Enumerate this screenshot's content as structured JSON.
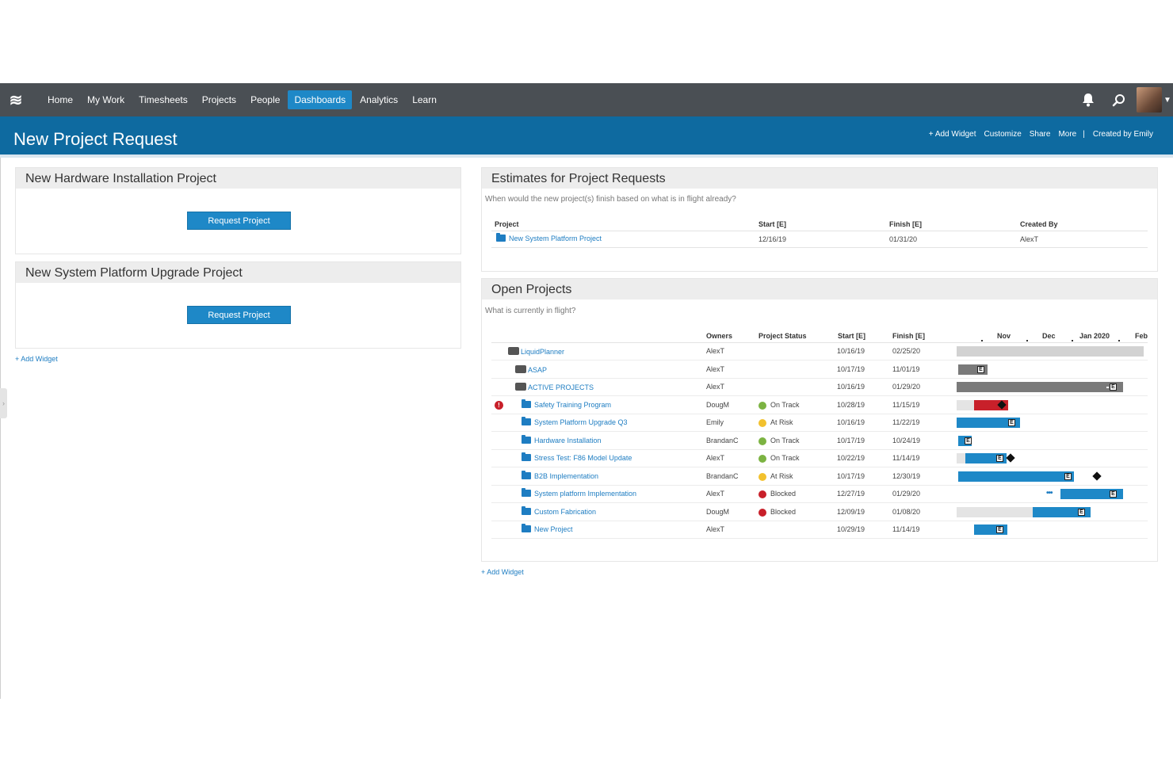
{
  "nav": {
    "items": [
      {
        "label": "Home"
      },
      {
        "label": "My Work"
      },
      {
        "label": "Timesheets"
      },
      {
        "label": "Projects"
      },
      {
        "label": "People"
      },
      {
        "label": "Dashboards",
        "active": true
      },
      {
        "label": "Analytics"
      },
      {
        "label": "Learn"
      }
    ],
    "icons": {
      "logo": "menu-waves-icon",
      "bell": "bell-icon",
      "search": "search-icon",
      "caret": "caret-down-icon"
    }
  },
  "header": {
    "title": "New Project Request",
    "actions": {
      "add_widget": "+ Add Widget",
      "customize": "Customize",
      "share": "Share",
      "more": "More",
      "separator": "|",
      "created_by": "Created by Emily"
    }
  },
  "left_column": {
    "hardware_widget": {
      "title": "New Hardware Installation Project",
      "button": "Request Project"
    },
    "platform_widget": {
      "title": "New System Platform Upgrade Project",
      "button": "Request Project"
    },
    "add_widget": "+ Add Widget"
  },
  "estimates": {
    "title": "Estimates for Project Requests",
    "subtitle": "When would the new project(s) finish based on what is in flight already?",
    "columns": {
      "project": "Project",
      "start": "Start [E]",
      "finish": "Finish [E]",
      "created_by": "Created By"
    },
    "rows": [
      {
        "project": "New System Platform Project",
        "start": "12/16/19",
        "finish": "01/31/20",
        "created_by": "AlexT"
      }
    ]
  },
  "open_projects": {
    "title": "Open Projects",
    "subtitle": "What is currently in flight?",
    "columns": {
      "owners": "Owners",
      "status": "Project Status",
      "start": "Start [E]",
      "finish": "Finish [E]"
    },
    "months": [
      "Nov",
      "Dec",
      "Jan 2020",
      "Feb"
    ],
    "status_colors": {
      "On Track": "#7cb342",
      "At Risk": "#f2c12e",
      "Blocked": "#c8202a"
    },
    "rows": [
      {
        "name": "LiquidPlanner",
        "type": "package",
        "indent": 0,
        "owner": "AlexT",
        "status": "",
        "start": "10/16/19",
        "finish": "02/25/20"
      },
      {
        "name": "ASAP",
        "type": "package",
        "indent": 1,
        "owner": "AlexT",
        "status": "",
        "start": "10/17/19",
        "finish": "11/01/19"
      },
      {
        "name": "ACTIVE PROJECTS",
        "type": "package",
        "indent": 1,
        "owner": "AlexT",
        "status": "",
        "start": "10/16/19",
        "finish": "01/29/20"
      },
      {
        "name": "Safety Training Program",
        "type": "project",
        "indent": 2,
        "owner": "DougM",
        "status": "On Track",
        "start": "10/28/19",
        "finish": "11/15/19",
        "alert": true
      },
      {
        "name": "System Platform Upgrade Q3",
        "type": "project",
        "indent": 2,
        "owner": "Emily",
        "status": "At Risk",
        "start": "10/16/19",
        "finish": "11/22/19"
      },
      {
        "name": "Hardware Installation",
        "type": "project",
        "indent": 2,
        "owner": "BrandanC",
        "status": "On Track",
        "start": "10/17/19",
        "finish": "10/24/19"
      },
      {
        "name": "Stress Test: F86 Model Update",
        "type": "project",
        "indent": 2,
        "owner": "AlexT",
        "status": "On Track",
        "start": "10/22/19",
        "finish": "11/14/19"
      },
      {
        "name": "B2B Implementation",
        "type": "project",
        "indent": 2,
        "owner": "BrandanC",
        "status": "At Risk",
        "start": "10/17/19",
        "finish": "12/30/19"
      },
      {
        "name": "System platform Implementation",
        "type": "project",
        "indent": 2,
        "owner": "AlexT",
        "status": "Blocked",
        "start": "12/27/19",
        "finish": "01/29/20"
      },
      {
        "name": "Custom Fabrication",
        "type": "project",
        "indent": 2,
        "owner": "DougM",
        "status": "Blocked",
        "start": "12/09/19",
        "finish": "01/08/20"
      },
      {
        "name": "New Project",
        "type": "project",
        "indent": 2,
        "owner": "AlexT",
        "status": "",
        "start": "10/29/19",
        "finish": "11/14/19"
      }
    ],
    "e_marker_label": "E",
    "add_widget": "+ Add Widget"
  }
}
